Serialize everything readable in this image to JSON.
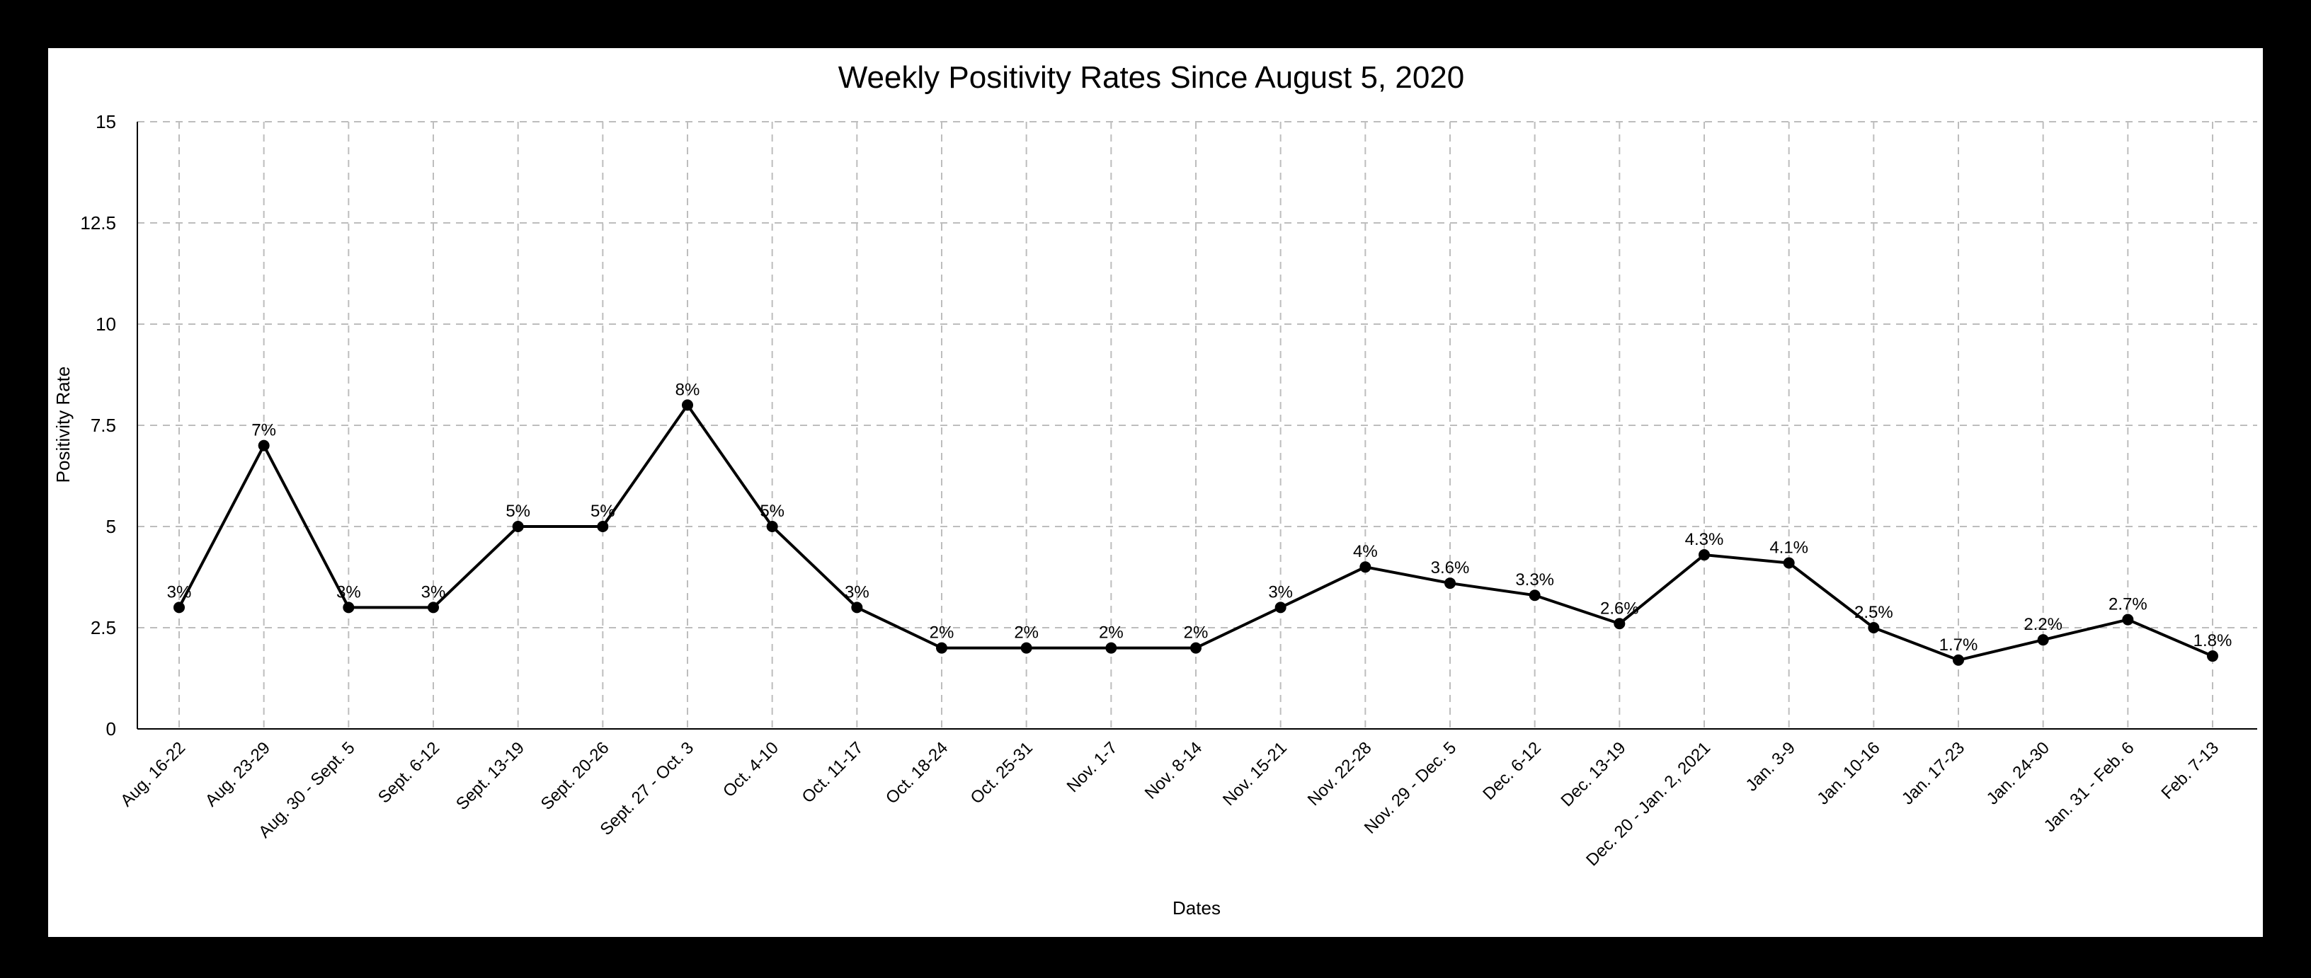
{
  "chart_data": {
    "type": "line",
    "title": "Weekly Positivity Rates Since August 5, 2020",
    "xlabel": "Dates",
    "ylabel": "Positivity Rate",
    "ylim": [
      0,
      15
    ],
    "yticks": [
      "0",
      "2.5",
      "5",
      "7.5",
      "10",
      "12.5",
      "15"
    ],
    "ytick_values": [
      0,
      2.5,
      5,
      7.5,
      10,
      12.5,
      15
    ],
    "grid": true,
    "categories": [
      "Aug. 16-22",
      "Aug. 23-29",
      "Aug. 30 - Sept. 5",
      "Sept. 6-12",
      "Sept. 13-19",
      "Sept. 20-26",
      "Sept. 27 - Oct. 3",
      "Oct. 4-10",
      "Oct. 11-17",
      "Oct. 18-24",
      "Oct. 25-31",
      "Nov. 1-7",
      "Nov. 8-14",
      "Nov. 15-21",
      "Nov. 22-28",
      "Nov. 29 - Dec. 5",
      "Dec. 6-12",
      "Dec. 13-19",
      "Dec. 20 - Jan. 2, 2021",
      "Jan. 3-9",
      "Jan. 10-16",
      "Jan. 17-23",
      "Jan. 24-30",
      "Jan. 31 - Feb. 6",
      "Feb. 7-13"
    ],
    "series": [
      {
        "values": [
          3,
          7,
          3,
          3,
          5,
          5,
          8,
          5,
          3,
          2,
          2,
          2,
          2,
          3,
          4,
          3.6,
          3.3,
          2.6,
          4.3,
          4.1,
          2.5,
          1.7,
          2.2,
          2.7,
          1.8
        ],
        "labels": [
          "3%",
          "7%",
          "3%",
          "3%",
          "5%",
          "5%",
          "8%",
          "5%",
          "3%",
          "2%",
          "2%",
          "2%",
          "2%",
          "3%",
          "4%",
          "3.6%",
          "3.3%",
          "2.6%",
          "4.3%",
          "4.1%",
          "2.5%",
          "1.7%",
          "2.2%",
          "2.7%",
          "1.8%"
        ]
      }
    ],
    "colors": {
      "line": "#000000",
      "grid": "#bdbdbd",
      "frame": "#000000"
    }
  }
}
